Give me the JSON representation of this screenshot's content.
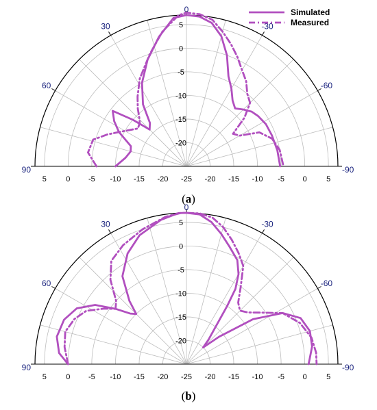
{
  "colors": {
    "series": "#b14fbf",
    "angle_label": "#1a237e",
    "grid": "#bdbdbd",
    "axis": "#000000"
  },
  "legend": {
    "position": "top-right"
  },
  "panels": [
    {
      "caption_label": "a"
    },
    {
      "caption_label": "b"
    }
  ],
  "chart_data": [
    {
      "type": "polar",
      "title": "",
      "r_ticks": [
        "5",
        "0",
        "-5",
        "-10",
        "-15",
        "-20",
        "-25",
        "-20",
        "-15",
        "-10",
        "-5",
        "0",
        "5"
      ],
      "r_tick_values": [
        5,
        0,
        -5,
        -10,
        -15,
        -20,
        -25,
        -20,
        -15,
        -10,
        -5,
        0,
        5
      ],
      "vertical_ticks": [
        "5",
        "0",
        "-5",
        "-10",
        "-15",
        "-20",
        "-25"
      ],
      "vertical_tick_values": [
        5,
        0,
        -5,
        -10,
        -15,
        -20,
        -25
      ],
      "angle_labels": [
        "90",
        "60",
        "30",
        "0",
        "-30",
        "-60",
        "-90"
      ],
      "angle_values": [
        90,
        60,
        30,
        0,
        -30,
        -60,
        -90
      ],
      "r_range": [
        -25,
        7
      ],
      "grid": true,
      "series": [
        {
          "name": "Simulated",
          "style": "solid",
          "points": [
            [
              90,
              -10
            ],
            [
              82,
              -12
            ],
            [
              75,
              -12.8
            ],
            [
              70,
              -12.5
            ],
            [
              63,
              -9
            ],
            [
              58,
              -7
            ],
            [
              53,
              -5.5
            ],
            [
              49,
              -10
            ],
            [
              45,
              -14
            ],
            [
              40,
              -13
            ],
            [
              35,
              -9
            ],
            [
              28,
              -5
            ],
            [
              20,
              -1
            ],
            [
              12,
              3
            ],
            [
              5,
              6.5
            ],
            [
              0,
              7
            ],
            [
              -5,
              6.8
            ],
            [
              -10,
              5.8
            ],
            [
              -15,
              3.5
            ],
            [
              -20,
              0
            ],
            [
              -25,
              -4
            ],
            [
              -30,
              -6
            ],
            [
              -35,
              -8
            ],
            [
              -40,
              -9
            ],
            [
              -45,
              -8
            ],
            [
              -50,
              -7
            ],
            [
              -55,
              -6.5
            ],
            [
              -62,
              -6
            ],
            [
              -70,
              -5.8
            ],
            [
              -80,
              -5.5
            ],
            [
              -90,
              -5.2
            ]
          ]
        },
        {
          "name": "Measured",
          "style": "dash-dot",
          "points": [
            [
              90,
              -6
            ],
            [
              82,
              -4
            ],
            [
              74,
              -4.5
            ],
            [
              68,
              -7
            ],
            [
              60,
              -10
            ],
            [
              52,
              -12
            ],
            [
              47,
              -11.5
            ],
            [
              45,
              -11
            ],
            [
              40,
              -9
            ],
            [
              35,
              -7
            ],
            [
              28,
              -4
            ],
            [
              18,
              0
            ],
            [
              10,
              4
            ],
            [
              3,
              7
            ],
            [
              0,
              7.5
            ],
            [
              -5,
              7.3
            ],
            [
              -10,
              6.5
            ],
            [
              -15,
              4.5
            ],
            [
              -20,
              2.5
            ],
            [
              -25,
              0.5
            ],
            [
              -30,
              -1.5
            ],
            [
              -35,
              -3
            ],
            [
              -40,
              -5
            ],
            [
              -45,
              -6
            ],
            [
              -50,
              -9
            ],
            [
              -55,
              -13
            ],
            [
              -60,
              -12
            ],
            [
              -65,
              -8
            ],
            [
              -72,
              -6
            ],
            [
              -80,
              -5
            ],
            [
              -90,
              -4.5
            ]
          ]
        }
      ]
    },
    {
      "type": "polar",
      "title": "",
      "r_ticks": [
        "5",
        "0",
        "-5",
        "-10",
        "-15",
        "-20",
        "-25",
        "-20",
        "-15",
        "-10",
        "-5",
        "0",
        "5"
      ],
      "r_tick_values": [
        5,
        0,
        -5,
        -10,
        -15,
        -20,
        -25,
        -20,
        -15,
        -10,
        -5,
        0,
        5
      ],
      "vertical_ticks": [
        "5",
        "0",
        "-5",
        "-10",
        "-15",
        "-20",
        "-25"
      ],
      "vertical_tick_values": [
        5,
        0,
        -5,
        -10,
        -15,
        -20,
        -25
      ],
      "angle_labels": [
        "90",
        "60",
        "30",
        "0",
        "-30",
        "-60",
        "-90"
      ],
      "angle_values": [
        90,
        60,
        30,
        0,
        -30,
        -60,
        -90
      ],
      "r_range": [
        -25,
        7
      ],
      "grid": true,
      "series": [
        {
          "name": "Simulated",
          "style": "solid",
          "points": [
            [
              90,
              0
            ],
            [
              85,
              2
            ],
            [
              78,
              3
            ],
            [
              70,
              2.5
            ],
            [
              63,
              1
            ],
            [
              57,
              -2
            ],
            [
              52,
              -6
            ],
            [
              48,
              -9
            ],
            [
              45,
              -10
            ],
            [
              42,
              -7
            ],
            [
              36,
              -2
            ],
            [
              28,
              1.5
            ],
            [
              20,
              4
            ],
            [
              10,
              6
            ],
            [
              3,
              7
            ],
            [
              0,
              7
            ],
            [
              -5,
              6.8
            ],
            [
              -10,
              5.5
            ],
            [
              -15,
              3.5
            ],
            [
              -20,
              1.5
            ],
            [
              -26,
              -0.5
            ],
            [
              -30,
              -3
            ],
            [
              -33,
              -6
            ],
            [
              -35,
              -10
            ],
            [
              -38,
              -15
            ],
            [
              -42,
              -18
            ],
            [
              -45,
              -20
            ],
            [
              -50,
              -16
            ],
            [
              -56,
              -8
            ],
            [
              -62,
              -2
            ],
            [
              -68,
              1
            ],
            [
              -75,
              2
            ],
            [
              -82,
              1.8
            ],
            [
              -88,
              1
            ],
            [
              -90,
              0.8
            ]
          ]
        },
        {
          "name": "Measured",
          "style": "dash-dot",
          "points": [
            [
              90,
              0
            ],
            [
              82,
              1
            ],
            [
              75,
              1.5
            ],
            [
              68,
              0.5
            ],
            [
              62,
              -1
            ],
            [
              56,
              -4
            ],
            [
              52,
              -6
            ],
            [
              48,
              -5
            ],
            [
              42,
              -1
            ],
            [
              36,
              2
            ],
            [
              28,
              3.5
            ],
            [
              18,
              5
            ],
            [
              8,
              6.5
            ],
            [
              2,
              7
            ],
            [
              0,
              7
            ],
            [
              -5,
              7
            ],
            [
              -10,
              6.5
            ],
            [
              -15,
              5
            ],
            [
              -20,
              3
            ],
            [
              -25,
              1
            ],
            [
              -30,
              -1
            ],
            [
              -35,
              -5
            ],
            [
              -40,
              -8
            ],
            [
              -45,
              -9
            ],
            [
              -50,
              -8
            ],
            [
              -55,
              -6
            ],
            [
              -62,
              -2
            ],
            [
              -70,
              0.5
            ],
            [
              -78,
              2
            ],
            [
              -85,
              2.5
            ],
            [
              -90,
              2.5
            ]
          ]
        }
      ]
    }
  ]
}
